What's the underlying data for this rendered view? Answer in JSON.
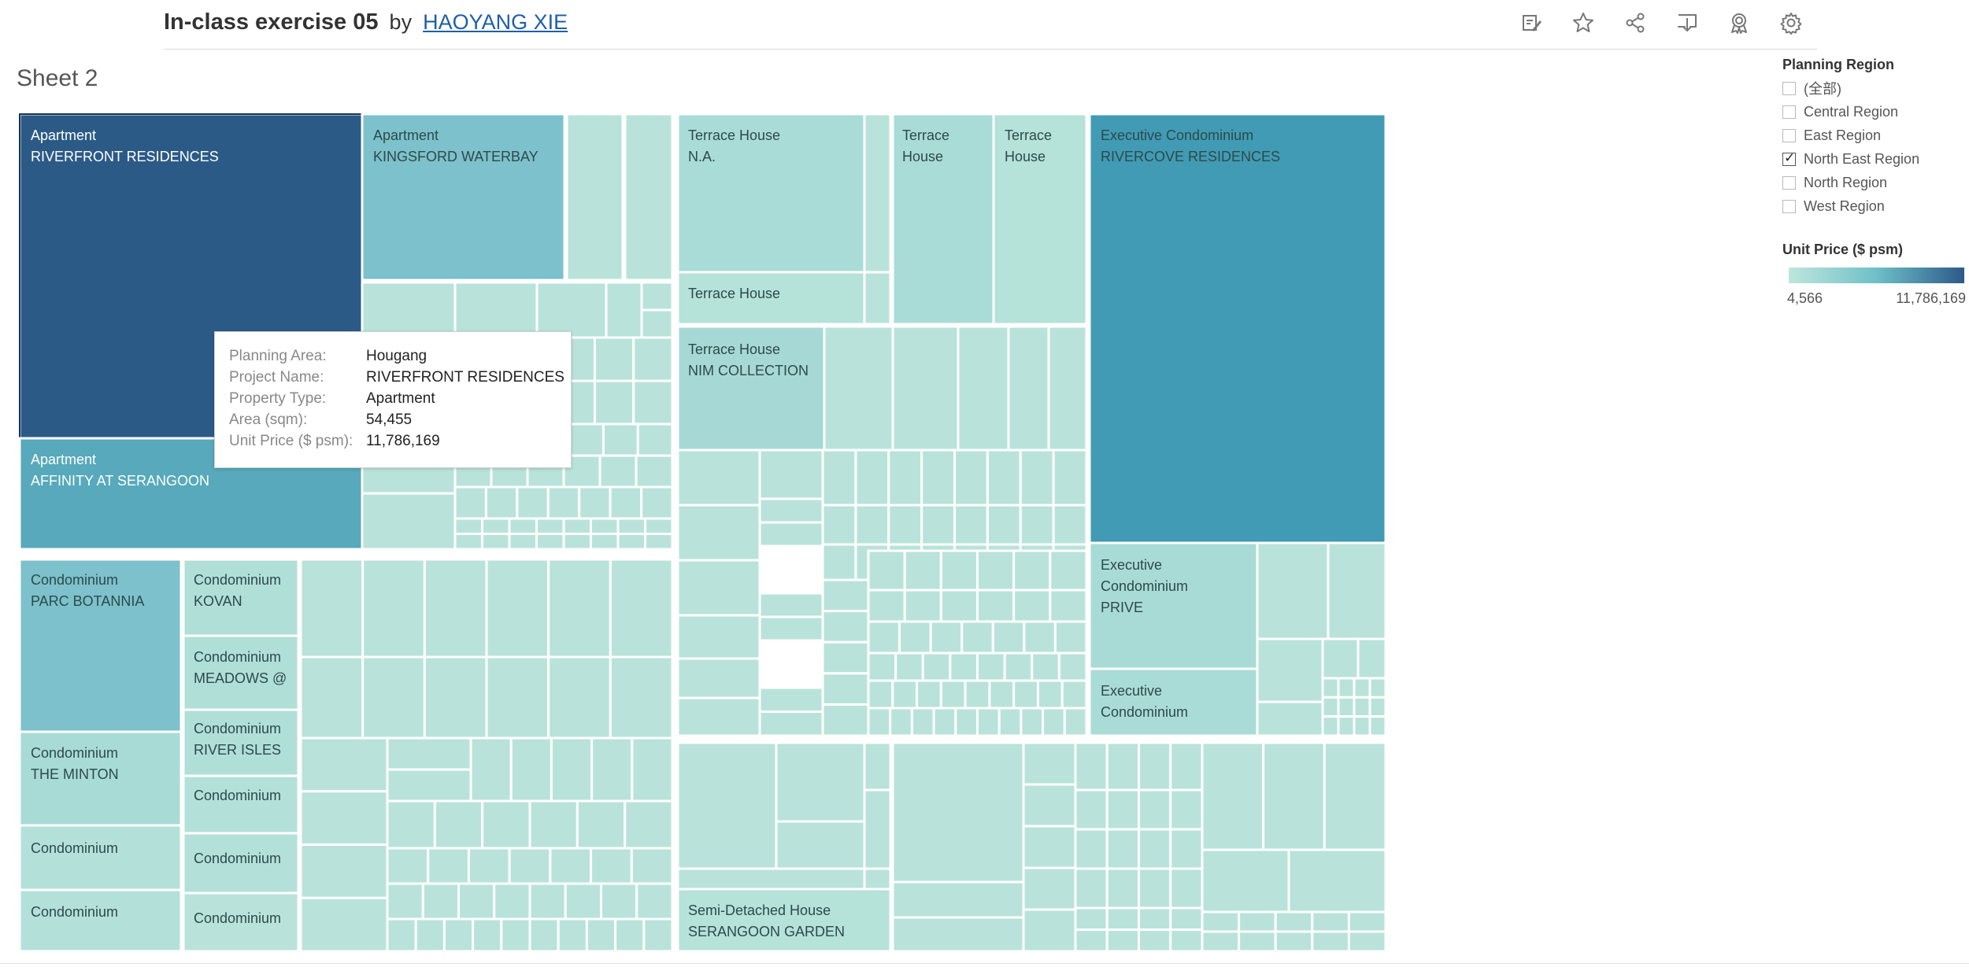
{
  "header": {
    "title": "In-class exercise 05",
    "by": "by",
    "author": "HAOYANG XIE"
  },
  "toolbar": {
    "icons": [
      "edit-icon",
      "star-icon",
      "share-icon",
      "download-icon",
      "badge-icon",
      "gear-icon"
    ]
  },
  "sheet_title": "Sheet 2",
  "filter": {
    "title": "Planning Region",
    "items": [
      {
        "label": "(全部)",
        "checked": false
      },
      {
        "label": "Central Region",
        "checked": false
      },
      {
        "label": "East Region",
        "checked": false
      },
      {
        "label": "North East Region",
        "checked": true
      },
      {
        "label": "North Region",
        "checked": false
      },
      {
        "label": "West Region",
        "checked": false
      }
    ]
  },
  "color_legend": {
    "title": "Unit Price ($ psm)",
    "min_label": "4,566",
    "max_label": "11,786,169",
    "colors": [
      "#bfe6dc",
      "#6fbfc9",
      "#2c5a87"
    ]
  },
  "tooltip": {
    "rows": [
      {
        "key": "Planning Area:",
        "value": "Hougang"
      },
      {
        "key": "Project Name:",
        "value": "RIVERFRONT RESIDENCES"
      },
      {
        "key": "Property Type:",
        "value": "Apartment"
      },
      {
        "key": "Area (sqm):",
        "value": "54,455"
      },
      {
        "key": "Unit Price ($ psm):",
        "value": "11,786,169"
      }
    ]
  },
  "chart_data": {
    "type": "treemap",
    "size_measure": "Area (sqm)",
    "color_measure": "Unit Price ($ psm)",
    "color_range": [
      4566,
      11786169
    ],
    "labeled_tiles": [
      {
        "lines": [
          "Apartment",
          "RIVERFRONT RESIDENCES"
        ],
        "color": "#2c5a87"
      },
      {
        "lines": [
          "Apartment",
          "KINGSFORD WATERBAY"
        ],
        "color": "#7cc1cb"
      },
      {
        "lines": [
          "Apartment",
          "AFFINITY AT SERANGOON"
        ],
        "color": "#57a9bb"
      },
      {
        "lines": [
          "Terrace House",
          "N.A."
        ],
        "color": "#aadcd7"
      },
      {
        "lines": [
          "Terrace",
          "House"
        ],
        "color": "#aadcd7"
      },
      {
        "lines": [
          "Terrace",
          "House"
        ],
        "color": "#b5e2d9"
      },
      {
        "lines": [
          "Terrace House"
        ],
        "color": "#b5e2d9"
      },
      {
        "lines": [
          "Terrace House",
          "NIM COLLECTION"
        ],
        "color": "#a6d9d6"
      },
      {
        "lines": [
          "Executive Condominium",
          "RIVERCOVE RESIDENCES"
        ],
        "color": "#419bb4"
      },
      {
        "lines": [
          "Executive",
          "Condominium",
          "PRIVE"
        ],
        "color": "#a8dbd6"
      },
      {
        "lines": [
          "Executive",
          "Condominium"
        ],
        "color": "#aadcd7"
      },
      {
        "lines": [
          "Condominium",
          "PARC BOTANNIA"
        ],
        "color": "#7cc1cb"
      },
      {
        "lines": [
          "Condominium",
          "KOVAN"
        ],
        "color": "#b0dfd8"
      },
      {
        "lines": [
          "Condominium",
          "MEADOWS @"
        ],
        "color": "#b0dfd8"
      },
      {
        "lines": [
          "Condominium",
          "RIVER ISLES"
        ],
        "color": "#b0dfd8"
      },
      {
        "lines": [
          "Condominium",
          "THE MINTON"
        ],
        "color": "#a8dbd6"
      },
      {
        "lines": [
          "Condominium"
        ],
        "color": "#b3e1d9"
      },
      {
        "lines": [
          "Condominium"
        ],
        "color": "#b3e1d9"
      },
      {
        "lines": [
          "Condominium"
        ],
        "color": "#b3e1d9"
      },
      {
        "lines": [
          "Condominium"
        ],
        "color": "#b3e1d9"
      },
      {
        "lines": [
          "Semi-Detached House",
          "SERANGOON GARDEN"
        ],
        "color": "#b5e2d9"
      }
    ],
    "default_tile_color": "#b9e3da"
  }
}
